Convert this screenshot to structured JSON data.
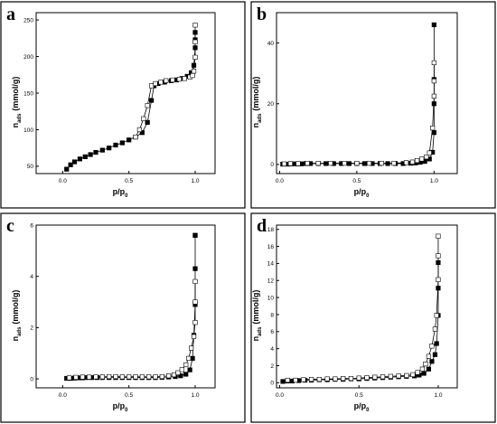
{
  "figure": {
    "panels": [
      {
        "letter": "a",
        "xlabel": "p/p",
        "xlabel_sub": "0",
        "ylabel": "n",
        "ylabel_sub": "ads",
        "ylabel_unit": "(mmol/g)"
      },
      {
        "letter": "b",
        "xlabel": "p/p",
        "xlabel_sub": "0",
        "ylabel": "n",
        "ylabel_sub": "ads",
        "ylabel_unit": "(mmol/g)"
      },
      {
        "letter": "c",
        "xlabel": "p/p",
        "xlabel_sub": "0",
        "ylabel": "n",
        "ylabel_sub": "ads",
        "ylabel_unit": "(mmol/g)"
      },
      {
        "letter": "d",
        "xlabel": "p/p",
        "xlabel_sub": "0",
        "ylabel": "n",
        "ylabel_sub": "ads",
        "ylabel_unit": "(mmol/g)"
      }
    ]
  },
  "colors": {
    "line": "#000000",
    "filled_marker": "#000000",
    "open_marker_fill": "#ffffff"
  },
  "chart_data": [
    {
      "type": "scatter",
      "panel": "a",
      "xlim": [
        -0.2,
        1.15
      ],
      "ylim": [
        40,
        260
      ],
      "xticks": [
        0.0,
        0.5,
        1.0
      ],
      "xtick_labels": [
        "0.0",
        "0.5",
        "1.0"
      ],
      "yticks": [
        50,
        100,
        150,
        200,
        250
      ],
      "ytick_labels": [
        "50",
        "100",
        "150",
        "200",
        "250"
      ],
      "grid": false,
      "series": [
        {
          "marker": "filled-square",
          "x": [
            0.03,
            0.06,
            0.09,
            0.13,
            0.17,
            0.21,
            0.25,
            0.3,
            0.35,
            0.4,
            0.45,
            0.5,
            0.55,
            0.6,
            0.64,
            0.67,
            0.69,
            0.72,
            0.77,
            0.82,
            0.86,
            0.9,
            0.94,
            0.97,
            0.99,
            1.0,
            1.0,
            1.0
          ],
          "y": [
            46,
            52,
            56,
            60,
            63,
            66,
            69,
            72,
            75,
            79,
            82,
            86,
            90,
            96,
            110,
            140,
            160,
            163,
            165,
            167,
            168,
            170,
            173,
            178,
            188,
            212,
            223,
            233
          ]
        },
        {
          "marker": "open-square",
          "x": [
            0.55,
            0.58,
            0.61,
            0.64,
            0.67,
            0.7,
            0.74,
            0.78,
            0.83,
            0.88,
            0.92,
            0.96,
            0.98,
            0.99,
            1.0,
            1.0,
            1.0
          ],
          "y": [
            90,
            100,
            115,
            133,
            160,
            163,
            165,
            167,
            168,
            169,
            170,
            172,
            174,
            180,
            199,
            220,
            243
          ]
        }
      ]
    },
    {
      "type": "scatter",
      "panel": "b",
      "xlim": [
        -0.02,
        1.15
      ],
      "ylim": [
        -3,
        50
      ],
      "xticks": [
        0.0,
        0.5,
        1.0
      ],
      "xtick_labels": [
        "0.0",
        "0.5",
        "1.0"
      ],
      "yticks": [
        0,
        20,
        40
      ],
      "ytick_labels": [
        "0",
        "20",
        "40"
      ],
      "grid": false,
      "series": [
        {
          "marker": "filled-square",
          "x": [
            0.02,
            0.05,
            0.08,
            0.11,
            0.14,
            0.17,
            0.2,
            0.25,
            0.3,
            0.35,
            0.4,
            0.45,
            0.5,
            0.55,
            0.6,
            0.65,
            0.7,
            0.75,
            0.8,
            0.85,
            0.88,
            0.91,
            0.94,
            0.97,
            0.99,
            1.0,
            1.0,
            1.0,
            1.0
          ],
          "y": [
            0.1,
            0.1,
            0.2,
            0.2,
            0.2,
            0.3,
            0.3,
            0.3,
            0.3,
            0.3,
            0.3,
            0.3,
            0.3,
            0.3,
            0.3,
            0.3,
            0.3,
            0.3,
            0.3,
            0.4,
            0.5,
            0.7,
            1.0,
            1.8,
            4.0,
            10.5,
            20,
            28,
            46
          ]
        },
        {
          "marker": "open-square",
          "x": [
            0.03,
            0.07,
            0.12,
            0.18,
            0.25,
            0.33,
            0.42,
            0.5,
            0.58,
            0.66,
            0.74,
            0.82,
            0.86,
            0.89,
            0.92,
            0.95,
            0.97,
            0.99,
            1.0,
            1.0,
            1.0
          ],
          "y": [
            0.2,
            0.3,
            0.3,
            0.4,
            0.4,
            0.4,
            0.4,
            0.4,
            0.4,
            0.4,
            0.4,
            0.6,
            0.8,
            1.3,
            1.8,
            2.5,
            3.8,
            12,
            22.5,
            27.5,
            33.5
          ]
        }
      ]
    },
    {
      "type": "scatter",
      "panel": "c",
      "xlim": [
        -0.2,
        1.15
      ],
      "ylim": [
        -0.35,
        6.0
      ],
      "xticks": [
        0.0,
        0.5,
        1.0
      ],
      "xtick_labels": [
        "0.0",
        "0.5",
        "1.0"
      ],
      "yticks": [
        0,
        2,
        4,
        6
      ],
      "ytick_labels": [
        "0",
        "2",
        "4",
        "6"
      ],
      "grid": false,
      "series": [
        {
          "marker": "filled-square",
          "x": [
            0.03,
            0.06,
            0.09,
            0.12,
            0.15,
            0.18,
            0.22,
            0.26,
            0.3,
            0.35,
            0.4,
            0.45,
            0.5,
            0.55,
            0.6,
            0.65,
            0.7,
            0.75,
            0.8,
            0.85,
            0.89,
            0.93,
            0.96,
            0.98,
            0.99,
            1.0,
            1.0,
            1.0,
            1.0
          ],
          "y": [
            0.02,
            0.02,
            0.03,
            0.04,
            0.04,
            0.05,
            0.05,
            0.05,
            0.05,
            0.05,
            0.05,
            0.05,
            0.05,
            0.05,
            0.05,
            0.05,
            0.05,
            0.06,
            0.07,
            0.09,
            0.12,
            0.18,
            0.35,
            0.8,
            1.7,
            2.9,
            4.3,
            5.6,
            5.6
          ]
        },
        {
          "marker": "open-square",
          "x": [
            0.05,
            0.1,
            0.15,
            0.2,
            0.25,
            0.3,
            0.35,
            0.4,
            0.45,
            0.5,
            0.55,
            0.6,
            0.65,
            0.7,
            0.75,
            0.8,
            0.84,
            0.87,
            0.9,
            0.93,
            0.95,
            0.97,
            0.99,
            1.0,
            1.0,
            1.0
          ],
          "y": [
            0.04,
            0.06,
            0.07,
            0.07,
            0.08,
            0.08,
            0.09,
            0.09,
            0.08,
            0.08,
            0.08,
            0.08,
            0.08,
            0.08,
            0.09,
            0.12,
            0.16,
            0.24,
            0.36,
            0.55,
            0.8,
            1.2,
            1.65,
            2.2,
            3.0,
            3.8
          ]
        }
      ]
    },
    {
      "type": "scatter",
      "panel": "d",
      "xlim": [
        -0.02,
        1.12
      ],
      "ylim": [
        -0.6,
        18.5
      ],
      "xticks": [
        0.0,
        0.5,
        1.0
      ],
      "xtick_labels": [
        "0.0",
        "0.5",
        "1.0"
      ],
      "yticks": [
        0,
        2,
        4,
        6,
        8,
        10,
        12,
        14,
        16,
        18
      ],
      "ytick_labels": [
        "0",
        "2",
        "4",
        "6",
        "8",
        "10",
        "12",
        "14",
        "16",
        "18"
      ],
      "grid": false,
      "series": [
        {
          "marker": "filled-square",
          "x": [
            0.02,
            0.05,
            0.08,
            0.12,
            0.16,
            0.2,
            0.25,
            0.3,
            0.35,
            0.4,
            0.45,
            0.5,
            0.55,
            0.6,
            0.65,
            0.7,
            0.75,
            0.8,
            0.85,
            0.88,
            0.91,
            0.94,
            0.96,
            0.98,
            0.99,
            1.0,
            1.0,
            1.0
          ],
          "y": [
            0.15,
            0.2,
            0.2,
            0.25,
            0.3,
            0.3,
            0.35,
            0.35,
            0.4,
            0.4,
            0.45,
            0.45,
            0.5,
            0.55,
            0.6,
            0.65,
            0.7,
            0.75,
            0.8,
            0.9,
            1.1,
            1.6,
            2.5,
            3.3,
            4.6,
            7.9,
            11.1,
            14.1
          ]
        },
        {
          "marker": "open-square",
          "x": [
            0.05,
            0.1,
            0.15,
            0.2,
            0.25,
            0.3,
            0.35,
            0.4,
            0.45,
            0.5,
            0.55,
            0.6,
            0.65,
            0.7,
            0.75,
            0.8,
            0.84,
            0.87,
            0.9,
            0.92,
            0.94,
            0.96,
            0.98,
            0.99,
            1.0,
            1.0,
            1.0
          ],
          "y": [
            0.3,
            0.3,
            0.35,
            0.4,
            0.4,
            0.45,
            0.45,
            0.5,
            0.5,
            0.55,
            0.6,
            0.65,
            0.7,
            0.75,
            0.8,
            0.85,
            0.95,
            1.2,
            1.6,
            2.2,
            3.1,
            4.3,
            6.3,
            7.9,
            12.1,
            14.9,
            17.2
          ]
        }
      ]
    }
  ]
}
